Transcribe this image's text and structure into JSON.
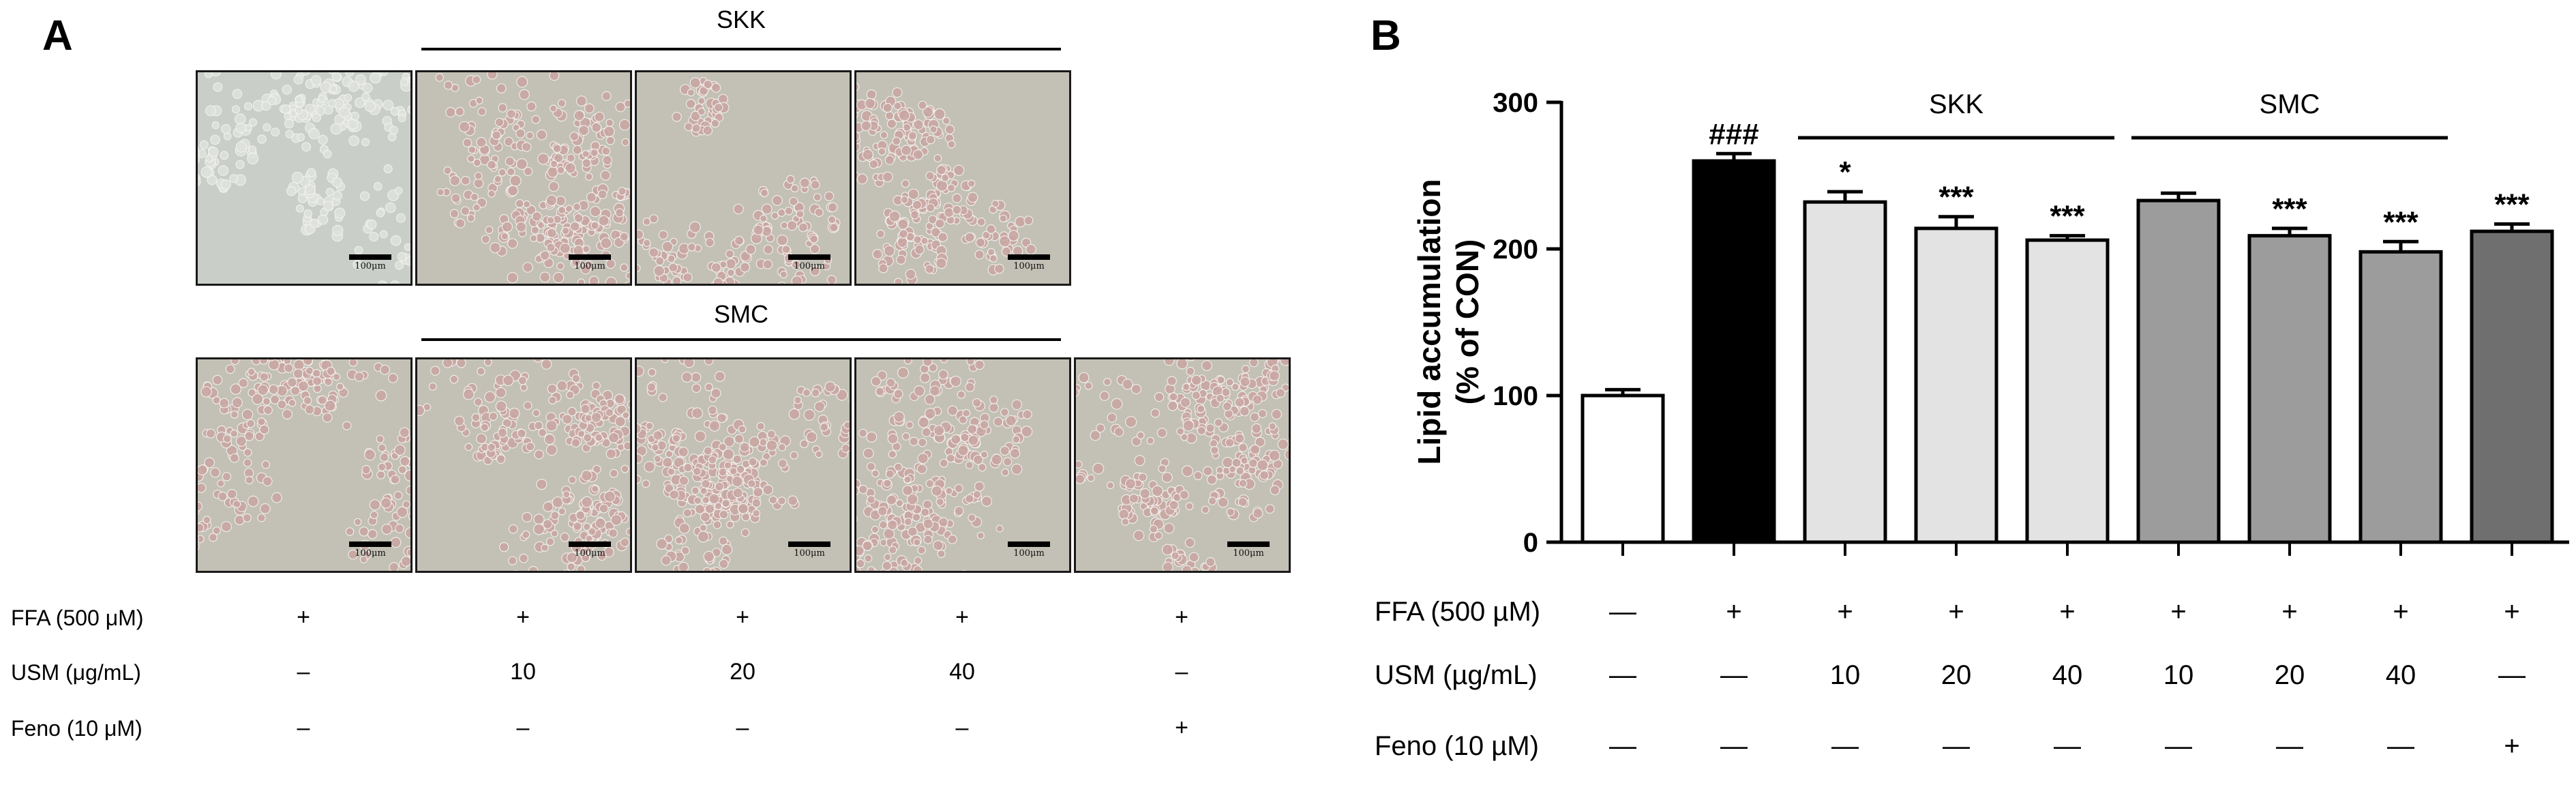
{
  "panel_a": {
    "letter": "A",
    "skk_label": "SKK",
    "smc_label": "SMC",
    "scale_label": "100μm",
    "treatment_labels": [
      "FFA (500 μM)",
      "USM (μg/mL)",
      "Feno (10 μM)"
    ],
    "columns": [
      [
        "+",
        "–",
        "–"
      ],
      [
        "+",
        "10",
        "–"
      ],
      [
        "+",
        "20",
        "–"
      ],
      [
        "+",
        "40",
        "–"
      ],
      [
        "+",
        "–",
        "+"
      ]
    ],
    "colors": {
      "cell_bg_clean": "#c9cfc8",
      "cell_bg_lipid": "#c3c0b5",
      "lipid_tint": "#c9a6a2"
    }
  },
  "panel_b": {
    "letter": "B",
    "treatment_labels": [
      "FFA (500 µM)",
      "USM (µg/mL)",
      "Feno (10 µM)"
    ],
    "columns": [
      [
        "—",
        "—",
        "—"
      ],
      [
        "+",
        "—",
        "—"
      ],
      [
        "+",
        "10",
        "—"
      ],
      [
        "+",
        "20",
        "—"
      ],
      [
        "+",
        "40",
        "—"
      ],
      [
        "+",
        "10",
        "—"
      ],
      [
        "+",
        "20",
        "—"
      ],
      [
        "+",
        "40",
        "—"
      ],
      [
        "+",
        "—",
        "+"
      ]
    ]
  },
  "chart_data": {
    "type": "bar",
    "ylabel": [
      "Lipid accumulation",
      "(% of CON)"
    ],
    "ylim": [
      0,
      300
    ],
    "yticks": [
      0,
      100,
      200,
      300
    ],
    "values": [
      100,
      260,
      232,
      214,
      206,
      233,
      209,
      198,
      212
    ],
    "errors": [
      4,
      5,
      7,
      8,
      3,
      5,
      5,
      7,
      5
    ],
    "significance": [
      "",
      "###",
      "*",
      "***",
      "***",
      "",
      "***",
      "***",
      "***"
    ],
    "bar_colors": [
      "#ffffff",
      "#000000",
      "#e3e3e3",
      "#e3e3e3",
      "#e3e3e3",
      "#9c9c9c",
      "#9c9c9c",
      "#9c9c9c",
      "#6f6f6f"
    ],
    "groups": [
      {
        "label": "SKK",
        "from": 2,
        "to": 4
      },
      {
        "label": "SMC",
        "from": 5,
        "to": 7
      }
    ]
  }
}
